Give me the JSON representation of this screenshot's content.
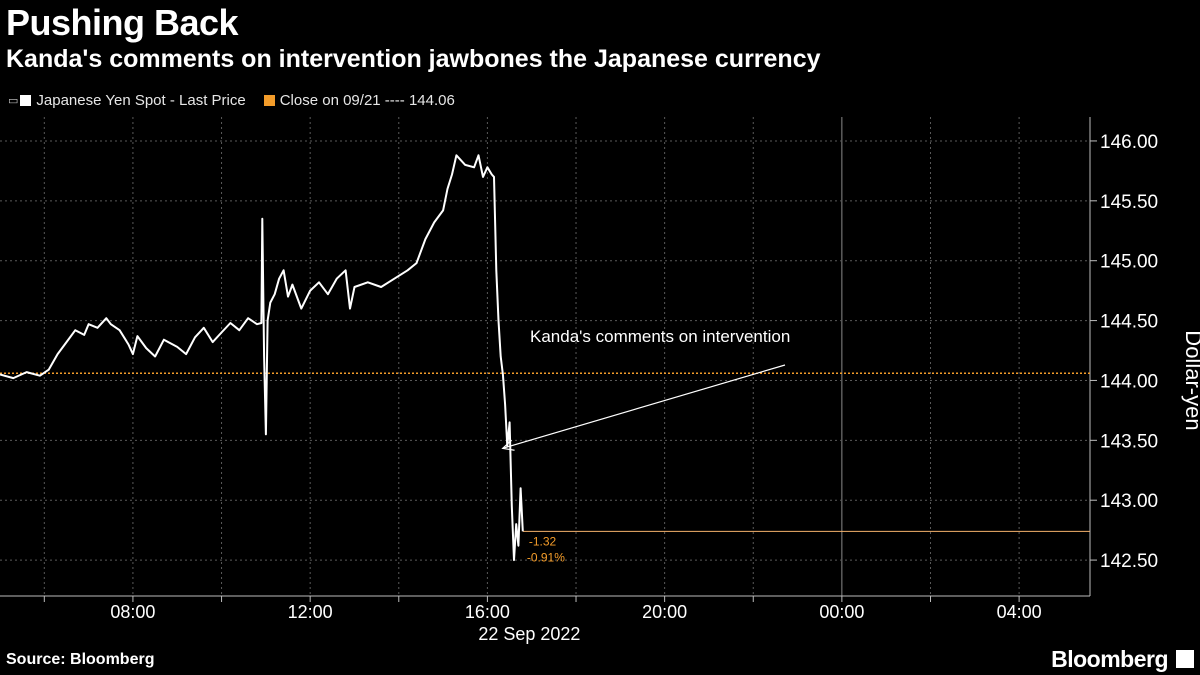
{
  "header": {
    "title": "Pushing Back",
    "subtitle": "Kanda's comments on intervention jawbones the Japanese currency"
  },
  "legend": {
    "series_label": "Japanese Yen Spot - Last Price",
    "close_label": "Close on 09/21 ---- 144.06"
  },
  "footer": {
    "source": "Source: Bloomberg",
    "brand": "Bloomberg"
  },
  "colors": {
    "background": "#000000",
    "line": "#ffffff",
    "close_line": "#f39c2a",
    "grid": "#5a5a5a"
  },
  "chart_data": {
    "type": "line",
    "title": "Pushing Back",
    "xlabel": "22 Sep 2022",
    "ylabel": "Dollar-yen",
    "ylim": [
      142.2,
      146.2
    ],
    "y_ticks": [
      142.5,
      143.0,
      143.5,
      144.0,
      144.5,
      145.0,
      145.5,
      146.0
    ],
    "y_tick_labels": [
      "142.50",
      "143.00",
      "143.50",
      "144.00",
      "144.50",
      "145.00",
      "145.50",
      "146.00"
    ],
    "x_range_hours": [
      5.0,
      29.6
    ],
    "x_ticks": [
      8,
      12,
      16,
      20,
      24,
      28
    ],
    "x_tick_labels": [
      "08:00",
      "12:00",
      "16:00",
      "20:00",
      "00:00",
      "04:00"
    ],
    "grid": true,
    "close_line": {
      "value": 144.06
    },
    "last_price": 142.74,
    "change_labels": [
      "-1.32",
      "-0.91%"
    ],
    "annotation": {
      "text": "Kanda's comments on intervention",
      "x": 16.3,
      "y": 143.5
    },
    "series": [
      {
        "name": "Japanese Yen Spot - Last Price",
        "points": [
          [
            5.0,
            144.05
          ],
          [
            5.3,
            144.02
          ],
          [
            5.6,
            144.07
          ],
          [
            5.9,
            144.04
          ],
          [
            6.1,
            144.09
          ],
          [
            6.3,
            144.22
          ],
          [
            6.5,
            144.32
          ],
          [
            6.7,
            144.42
          ],
          [
            6.9,
            144.38
          ],
          [
            7.0,
            144.47
          ],
          [
            7.2,
            144.44
          ],
          [
            7.4,
            144.52
          ],
          [
            7.5,
            144.47
          ],
          [
            7.7,
            144.42
          ],
          [
            7.9,
            144.3
          ],
          [
            8.0,
            144.22
          ],
          [
            8.1,
            144.37
          ],
          [
            8.3,
            144.27
          ],
          [
            8.5,
            144.2
          ],
          [
            8.7,
            144.34
          ],
          [
            9.0,
            144.28
          ],
          [
            9.2,
            144.22
          ],
          [
            9.4,
            144.36
          ],
          [
            9.6,
            144.44
          ],
          [
            9.8,
            144.32
          ],
          [
            10.0,
            144.4
          ],
          [
            10.2,
            144.48
          ],
          [
            10.4,
            144.42
          ],
          [
            10.6,
            144.52
          ],
          [
            10.8,
            144.47
          ],
          [
            10.9,
            144.48
          ],
          [
            10.92,
            145.35
          ],
          [
            10.96,
            144.2
          ],
          [
            11.0,
            143.55
          ],
          [
            11.04,
            144.5
          ],
          [
            11.1,
            144.65
          ],
          [
            11.2,
            144.72
          ],
          [
            11.3,
            144.85
          ],
          [
            11.4,
            144.92
          ],
          [
            11.5,
            144.7
          ],
          [
            11.6,
            144.8
          ],
          [
            11.8,
            144.6
          ],
          [
            12.0,
            144.75
          ],
          [
            12.2,
            144.82
          ],
          [
            12.4,
            144.72
          ],
          [
            12.6,
            144.85
          ],
          [
            12.8,
            144.92
          ],
          [
            12.9,
            144.6
          ],
          [
            13.0,
            144.78
          ],
          [
            13.3,
            144.82
          ],
          [
            13.6,
            144.78
          ],
          [
            13.9,
            144.85
          ],
          [
            14.2,
            144.92
          ],
          [
            14.4,
            144.98
          ],
          [
            14.6,
            145.18
          ],
          [
            14.8,
            145.32
          ],
          [
            15.0,
            145.42
          ],
          [
            15.1,
            145.6
          ],
          [
            15.2,
            145.72
          ],
          [
            15.3,
            145.88
          ],
          [
            15.5,
            145.8
          ],
          [
            15.7,
            145.78
          ],
          [
            15.8,
            145.88
          ],
          [
            15.9,
            145.7
          ],
          [
            16.0,
            145.78
          ],
          [
            16.1,
            145.72
          ],
          [
            16.15,
            145.7
          ],
          [
            16.2,
            144.92
          ],
          [
            16.25,
            144.5
          ],
          [
            16.3,
            144.2
          ],
          [
            16.35,
            144.05
          ],
          [
            16.4,
            143.8
          ],
          [
            16.45,
            143.45
          ],
          [
            16.5,
            143.65
          ],
          [
            16.55,
            142.95
          ],
          [
            16.6,
            142.5
          ],
          [
            16.65,
            142.8
          ],
          [
            16.7,
            142.62
          ],
          [
            16.75,
            143.1
          ],
          [
            16.8,
            142.74
          ]
        ]
      }
    ]
  }
}
